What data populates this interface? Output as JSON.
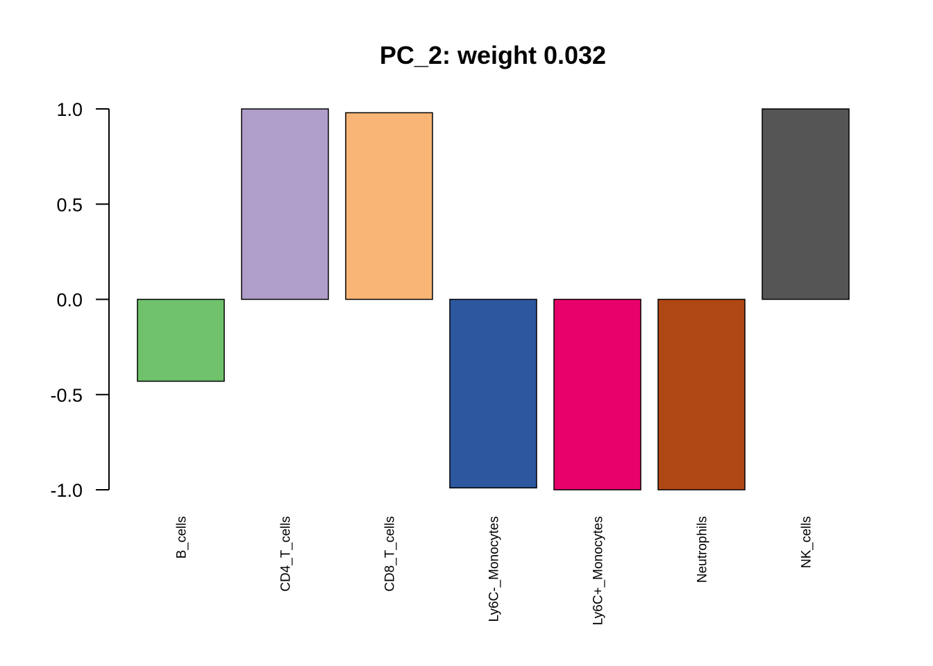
{
  "chart_data": {
    "type": "bar",
    "title": "PC_2: weight 0.032",
    "xlabel": "",
    "ylabel": "",
    "categories": [
      "B_cells",
      "CD4_T_cells",
      "CD8_T_cells",
      "Ly6C-_Monocytes",
      "Ly6C+_Monocytes",
      "Neutrophils",
      "NK_cells"
    ],
    "values": [
      -0.43,
      1.0,
      0.98,
      -0.99,
      -1.0,
      -1.0,
      1.0
    ],
    "colors": [
      "#6fc26b",
      "#af9dca",
      "#f9b576",
      "#2d58a0",
      "#e8006b",
      "#af4714",
      "#555555"
    ],
    "ylim": [
      -1.0,
      1.0
    ],
    "yticks": [
      -1.0,
      -0.5,
      0.0,
      0.5,
      1.0
    ],
    "ytick_labels": [
      "-1.0",
      "-0.5",
      "0.0",
      "0.5",
      "1.0"
    ],
    "grid": false,
    "legend": "none"
  }
}
